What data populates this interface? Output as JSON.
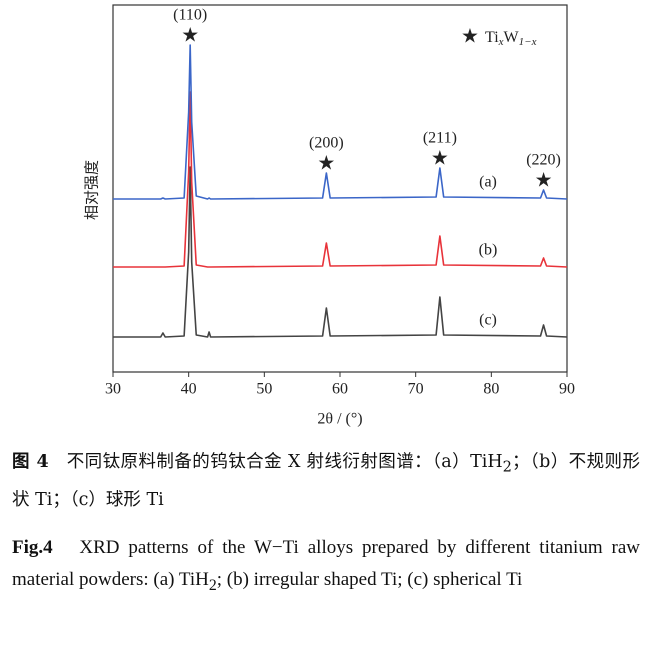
{
  "chart_data": {
    "type": "line",
    "ylabel": "相对强度",
    "xlabel": "2θ / (°)",
    "xlim": [
      30,
      90
    ],
    "xticks": [
      30,
      40,
      50,
      60,
      70,
      80,
      90
    ],
    "ylim": [
      0,
      367
    ],
    "x": [
      30,
      36.3,
      36.6,
      36.9,
      39.4,
      40.0,
      40.2,
      40.4,
      41,
      42.5,
      42.7,
      42.9,
      57.7,
      58.2,
      58.7,
      72.7,
      73.2,
      73.7,
      86.5,
      86.9,
      87.3,
      90
    ],
    "series": [
      {
        "name": "(a)",
        "color": "#3b66c8",
        "values": [
          173,
          173,
          174,
          173,
          174,
          260,
          327,
          250,
          176,
          173,
          174,
          173,
          174,
          199,
          174,
          175,
          204,
          175,
          174,
          182,
          174,
          173
        ]
      },
      {
        "name": "(b)",
        "color": "#e8333a",
        "values": [
          105,
          105,
          105,
          105,
          106,
          200,
          280,
          190,
          107,
          105,
          105,
          105,
          106,
          129,
          106,
          107,
          136,
          107,
          106,
          114,
          106,
          105
        ]
      },
      {
        "name": "(c)",
        "color": "#444444",
        "values": [
          35,
          35,
          39,
          35,
          36,
          120,
          205,
          110,
          37,
          35,
          40,
          35,
          36,
          64,
          36,
          37,
          75,
          37,
          36,
          47,
          36,
          35
        ]
      }
    ],
    "peaks": [
      {
        "label": "(110)",
        "x": 40.2,
        "y": 327
      },
      {
        "label": "(200)",
        "x": 58.2,
        "y": 199
      },
      {
        "label": "(211)",
        "x": 73.2,
        "y": 204
      },
      {
        "label": "(220)",
        "x": 86.9,
        "y": 182
      }
    ],
    "legend": {
      "symbol": "★",
      "parts": [
        "Ti",
        "x",
        "W",
        "1−x"
      ]
    }
  },
  "caption": {
    "cn": {
      "fig": "图 4",
      "text": "不同钛原料制备的钨钛合金 X 射线衍射图谱：（a）TiH",
      "sub": "2",
      "rest": "；（b）不规则形状 Ti；（c）球形 Ti"
    },
    "en": {
      "fig": "Fig.4",
      "text": "XRD patterns of the W−Ti alloys prepared by different titanium raw material powders: (a) TiH",
      "sub": "2",
      "rest": "; (b) irregular shaped Ti; (c) spherical Ti"
    }
  }
}
